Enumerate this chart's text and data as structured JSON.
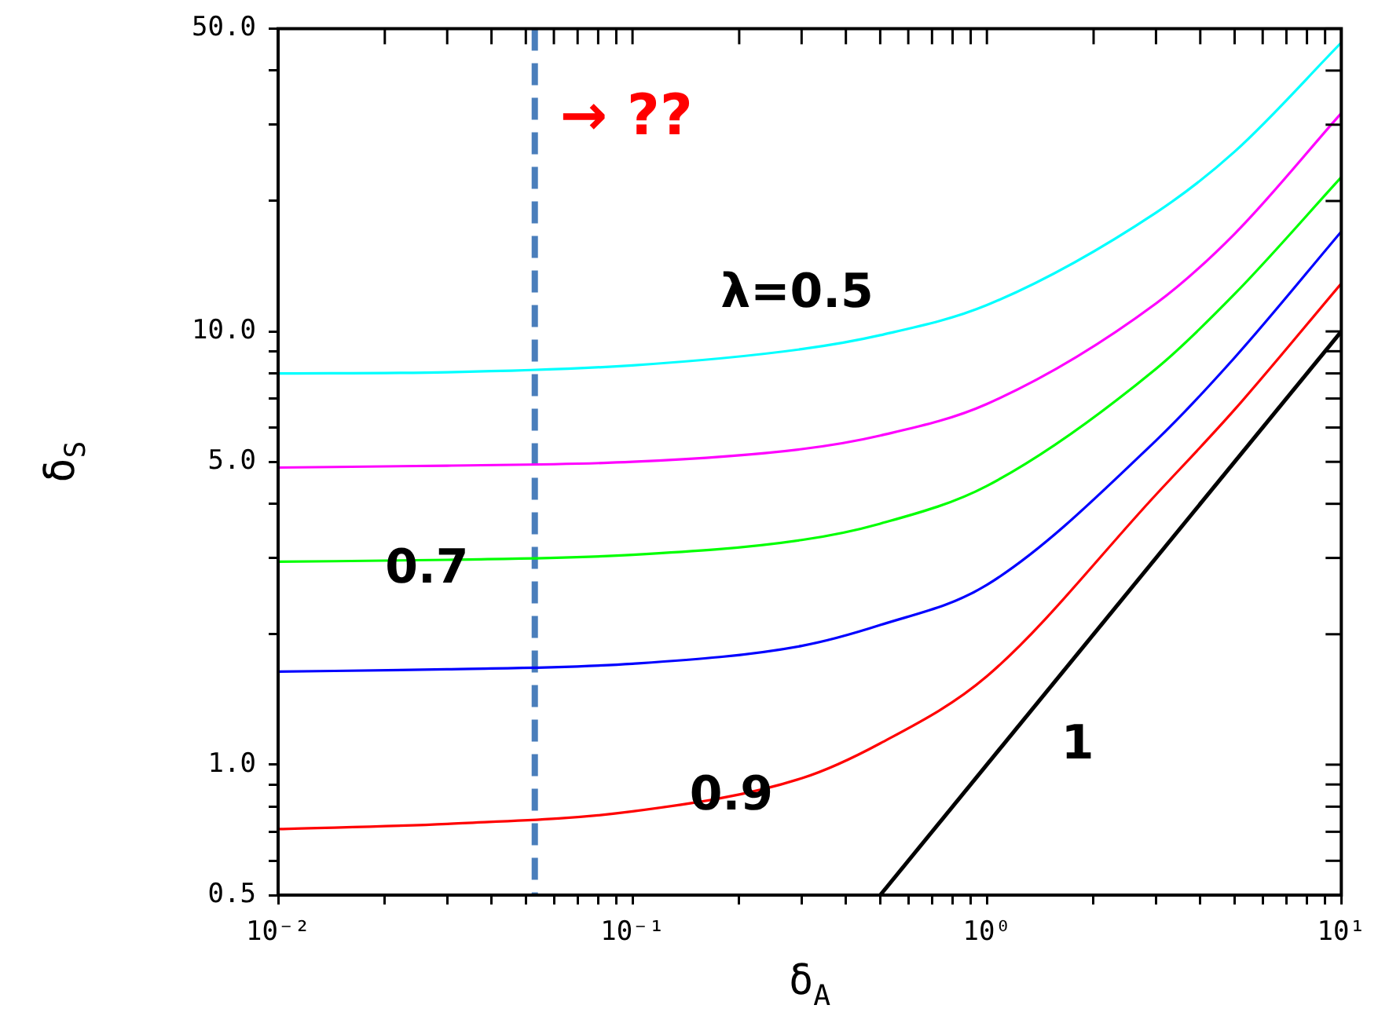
{
  "chart_data": {
    "type": "line",
    "xlabel": "δ$_{A}$",
    "ylabel": "δ$_{S}$",
    "log": "xy",
    "grid": false,
    "legend": false,
    "x": [
      0.01,
      0.03,
      0.1,
      0.3,
      0.5,
      1,
      3,
      5,
      10
    ],
    "xlim": [
      0.01,
      10
    ],
    "ylim": [
      0.5,
      50
    ],
    "xticks": [
      {
        "value": 0.01,
        "label": "10⁻²"
      },
      {
        "value": 0.02,
        "label": null
      },
      {
        "value": 0.03,
        "label": null
      },
      {
        "value": 0.04,
        "label": null
      },
      {
        "value": 0.05,
        "label": null
      },
      {
        "value": 0.06,
        "label": null
      },
      {
        "value": 0.07,
        "label": null
      },
      {
        "value": 0.08,
        "label": null
      },
      {
        "value": 0.09,
        "label": null
      },
      {
        "value": 0.1,
        "label": "10⁻¹"
      },
      {
        "value": 0.2,
        "label": null
      },
      {
        "value": 0.3,
        "label": null
      },
      {
        "value": 0.4,
        "label": null
      },
      {
        "value": 0.5,
        "label": null
      },
      {
        "value": 0.6,
        "label": null
      },
      {
        "value": 0.7,
        "label": null
      },
      {
        "value": 0.8,
        "label": null
      },
      {
        "value": 0.9,
        "label": null
      },
      {
        "value": 1,
        "label": "10⁰"
      },
      {
        "value": 2,
        "label": null
      },
      {
        "value": 3,
        "label": null
      },
      {
        "value": 4,
        "label": null
      },
      {
        "value": 5,
        "label": null
      },
      {
        "value": 6,
        "label": null
      },
      {
        "value": 7,
        "label": null
      },
      {
        "value": 8,
        "label": null
      },
      {
        "value": 9,
        "label": null
      },
      {
        "value": 10,
        "label": "10¹"
      }
    ],
    "yticks": [
      {
        "value": 0.5,
        "label": "0.5"
      },
      {
        "value": 0.6,
        "label": null
      },
      {
        "value": 0.7,
        "label": null
      },
      {
        "value": 0.8,
        "label": null
      },
      {
        "value": 0.9,
        "label": null
      },
      {
        "value": 1,
        "label": "1.0"
      },
      {
        "value": 2,
        "label": null
      },
      {
        "value": 3,
        "label": null
      },
      {
        "value": 4,
        "label": null
      },
      {
        "value": 5,
        "label": "5.0"
      },
      {
        "value": 6,
        "label": null
      },
      {
        "value": 7,
        "label": null
      },
      {
        "value": 8,
        "label": null
      },
      {
        "value": 9,
        "label": null
      },
      {
        "value": 10,
        "label": "10.0"
      },
      {
        "value": 20,
        "label": null
      },
      {
        "value": 30,
        "label": null
      },
      {
        "value": 40,
        "label": null
      },
      {
        "value": 50,
        "label": "50.0"
      }
    ],
    "series": [
      {
        "color": "#00ffff",
        "values": [
          8.0,
          8.05,
          8.35,
          9.1,
          9.8,
          11.5,
          18.8,
          26,
          46.4
        ]
      },
      {
        "color": "#ff00ff",
        "values": [
          4.85,
          4.9,
          5.0,
          5.35,
          5.75,
          6.8,
          11.6,
          16.8,
          31.9
        ]
      },
      {
        "color": "#00ff00",
        "values": [
          2.94,
          2.97,
          3.05,
          3.3,
          3.6,
          4.4,
          8.2,
          12.2,
          22.7
        ]
      },
      {
        "color": "#0000ff",
        "values": [
          1.64,
          1.66,
          1.71,
          1.88,
          2.1,
          2.6,
          5.6,
          8.7,
          17.0
        ]
      },
      {
        "color": "#ff0000",
        "values": [
          0.71,
          0.73,
          0.78,
          0.93,
          1.12,
          1.6,
          4.2,
          6.6,
          12.9
        ]
      },
      {
        "color": "#000000",
        "x": [
          0.5,
          10
        ],
        "values": [
          0.5,
          10
        ]
      }
    ],
    "ref_lines": [
      {
        "axis": "x",
        "value": 0.053,
        "label": "→ ??",
        "color": "#4a7ebb",
        "line_style": "dashed"
      }
    ],
    "annotations": [
      "λ=0.5",
      "0.7",
      {
        "text": "0.9",
        "x": 0.19,
        "y": 0.84
      },
      "1"
    ]
  }
}
